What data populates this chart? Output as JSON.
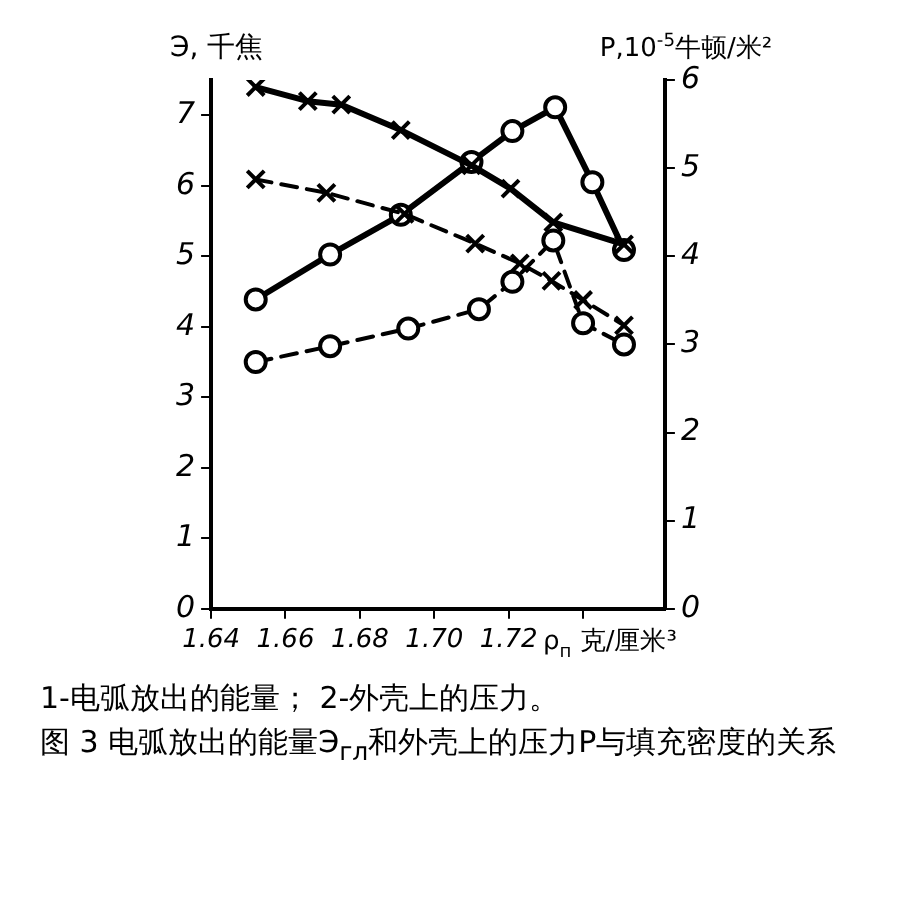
{
  "chart_data": {
    "type": "line",
    "xlabel": "ρ$_{п}$ 克/厘米³",
    "ylabel": "Э, 千焦",
    "y2label": "P,10$^{-5}$牛顿/米²",
    "xlim": [
      1.64,
      1.762
    ],
    "xticks": [
      1.64,
      1.66,
      1.68,
      {
        "value": 1.7,
        "label": "1.70"
      },
      1.72,
      {
        "value": 1.74,
        "label": null
      }
    ],
    "ylim": [
      0,
      7.5
    ],
    "yticks": [
      0,
      1,
      2,
      3,
      4,
      5,
      6,
      7
    ],
    "y2lim": [
      0,
      6
    ],
    "y2ticks": [
      0,
      1,
      2,
      3,
      4,
      5,
      6
    ],
    "grid": false,
    "legend": false,
    "series": [
      {
        "color": "#000000",
        "marker": "cross",
        "line_style": "solid",
        "x": [
          1.652,
          1.666,
          1.675,
          1.691,
          1.71,
          1.7205,
          1.732,
          1.751
        ],
        "values": [
          7.4,
          7.2,
          7.15,
          6.79,
          6.29,
          5.96,
          5.48,
          5.17
        ]
      },
      {
        "color": "#000000",
        "marker": "cross",
        "line_style": "dashed",
        "x": [
          1.652,
          1.671,
          1.692,
          1.711,
          1.723,
          1.7315,
          1.74,
          1.751
        ],
        "values": [
          6.09,
          5.9,
          5.6,
          5.18,
          4.9,
          4.65,
          4.38,
          4.02
        ]
      },
      {
        "color": "#000000",
        "marker": "circle",
        "line_style": "solid",
        "axis": "y2",
        "x": [
          1.652,
          1.672,
          1.691,
          1.71,
          1.721,
          1.7325,
          1.7425,
          1.751
        ],
        "values": [
          3.51,
          4.02,
          4.47,
          5.07,
          5.42,
          5.69,
          4.84,
          4.07
        ]
      },
      {
        "color": "#000000",
        "marker": "circle",
        "line_style": "dashed",
        "axis": "y2",
        "x": [
          1.652,
          1.672,
          1.693,
          1.712,
          1.721,
          1.732,
          1.74,
          1.751
        ],
        "values": [
          2.8,
          2.98,
          3.18,
          3.4,
          3.71,
          4.18,
          3.24,
          3.0
        ]
      }
    ],
    "annotations": [
      "1-电弧放出的能量；   2-外壳上的压力。",
      "图 3   电弧放出的能量Э$_{гл}$和外壳上的压力P与填充密度的关系"
    ]
  }
}
